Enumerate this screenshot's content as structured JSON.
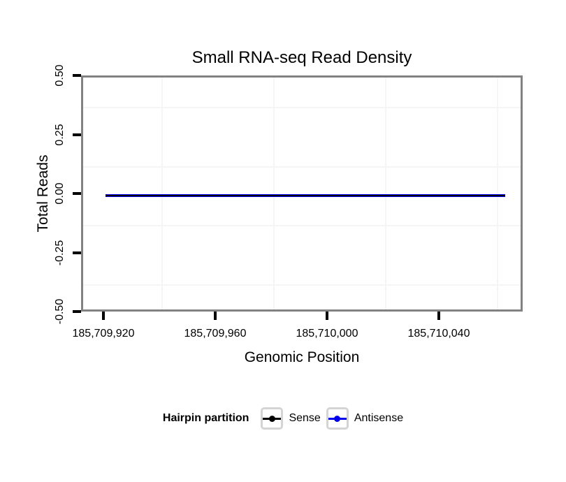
{
  "chart_data": {
    "type": "line",
    "title": "Small RNA-seq Read Density",
    "xlabel": "Genomic Position",
    "ylabel": "Total Reads",
    "x_range": [
      185709912,
      185710070
    ],
    "y_range": [
      -0.5,
      0.5
    ],
    "x_ticks": [
      {
        "value": 185709920,
        "label": "185,709,920"
      },
      {
        "value": 185709960,
        "label": "185,709,960"
      },
      {
        "value": 185710000,
        "label": "185,710,000"
      },
      {
        "value": 185710040,
        "label": "185,710,040"
      }
    ],
    "y_ticks": [
      {
        "value": 0.5,
        "label": "0.50"
      },
      {
        "value": 0.25,
        "label": "0.25"
      },
      {
        "value": 0.0,
        "label": "0.00"
      },
      {
        "value": -0.25,
        "label": "-0.25"
      },
      {
        "value": -0.5,
        "label": "-0.50"
      }
    ],
    "grid": {
      "major_visible": false,
      "minor_visible": true,
      "minor_color": "#f5f5f5"
    },
    "series": [
      {
        "name": "Sense",
        "color": "#000000",
        "x": [
          185709920,
          185710063
        ],
        "y": [
          0,
          0
        ]
      },
      {
        "name": "Antisense",
        "color": "#0000EE",
        "x": [
          185709920,
          185710063
        ],
        "y": [
          0,
          0
        ]
      }
    ],
    "legend": {
      "title": "Hairpin partition",
      "position": "bottom",
      "entries": [
        {
          "label": "Sense",
          "color": "#000000"
        },
        {
          "label": "Antisense",
          "color": "#0000EE"
        }
      ]
    }
  },
  "colors": {
    "background": "#ffffff",
    "panel_border": "#828282",
    "tick_mark": "#000000",
    "grid_minor": "#f5f5f5",
    "legend_key_border": "#d4d4d4"
  }
}
